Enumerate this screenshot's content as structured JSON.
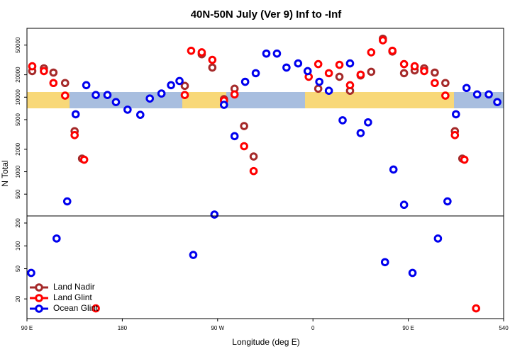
{
  "chart_data": [
    {
      "type": "scatter",
      "title": "40N-50N July (Ver 9)   Inf to -Inf",
      "ylabel": "N Total",
      "log_y": true,
      "xlim": [
        90,
        540
      ],
      "ylim": [
        255,
        84000
      ],
      "yticks": [
        500,
        1000,
        2000,
        5000,
        10000,
        20000,
        50000
      ],
      "series": [
        {
          "color": "#a52a2a",
          "x": [
            95,
            106,
            115,
            126,
            135,
            142,
            239,
            255,
            265,
            276,
            286,
            295,
            304,
            365,
            385,
            395,
            405,
            415,
            426,
            435,
            446,
            456,
            465,
            475,
            485,
            494,
            501
          ],
          "values": [
            22400,
            24400,
            21400,
            15500,
            3500,
            1500,
            14200,
            37700,
            25000,
            9400,
            13000,
            4100,
            1600,
            13000,
            18800,
            12200,
            19600,
            21900,
            61000,
            41000,
            21000,
            22900,
            24400,
            21400,
            15500,
            3500,
            1500
          ]
        },
        {
          "color": "#ff0000",
          "x": [
            95,
            106,
            115,
            126,
            135,
            144,
            239,
            245,
            255,
            265,
            276,
            286,
            295,
            304,
            356,
            365,
            375,
            385,
            395,
            405,
            415,
            426,
            435,
            446,
            456,
            465,
            475,
            485,
            494,
            503
          ],
          "values": [
            26000,
            22400,
            15500,
            10500,
            3100,
            1450,
            10700,
            42000,
            40000,
            31700,
            9000,
            10900,
            2200,
            1020,
            18800,
            27800,
            21000,
            27200,
            14500,
            20100,
            40000,
            58000,
            42000,
            27800,
            26000,
            22400,
            15500,
            10500,
            3100,
            1450
          ]
        },
        {
          "color": "#0000ee",
          "x": [
            128,
            136,
            146,
            155,
            166,
            174,
            185,
            197,
            206,
            217,
            226,
            234,
            267,
            276,
            286,
            296,
            306,
            316,
            326,
            335,
            346,
            355,
            366,
            375,
            388,
            395,
            405,
            412,
            436,
            446,
            487,
            495,
            505,
            515,
            526,
            534
          ],
          "values": [
            400,
            5900,
            14500,
            10700,
            10700,
            8600,
            6800,
            5800,
            9600,
            11200,
            14500,
            16500,
            266,
            7900,
            3000,
            16100,
            21000,
            38500,
            38500,
            25000,
            28400,
            22400,
            16100,
            12200,
            4900,
            28400,
            3300,
            4600,
            1070,
            360,
            400,
            5900,
            13300,
            10900,
            10900,
            8600
          ]
        }
      ]
    },
    {
      "type": "scatter",
      "xlabel": "Longitude (deg E)",
      "log_y": true,
      "legend": "lower left",
      "xlim": [
        90,
        540
      ],
      "xticks": [
        {
          "value": 90,
          "label": "90 E"
        },
        180,
        {
          "value": 270,
          "label": "90 W"
        },
        {
          "value": 360,
          "label": "0"
        },
        {
          "value": 450,
          "label": "90 E"
        },
        540
      ],
      "ylim": [
        11,
        248
      ],
      "yticks": [
        20,
        50,
        100,
        200
      ],
      "series": [
        {
          "name": "Land Nadir",
          "color": "#a52a2a",
          "x": [],
          "values": []
        },
        {
          "name": "Land Glint",
          "color": "#ff0000",
          "x": [
            155,
            514
          ],
          "values": [
            15,
            15
          ]
        },
        {
          "name": "Ocean Glint",
          "color": "#0000ee",
          "x": [
            94,
            118,
            247,
            428,
            454,
            478
          ],
          "values": [
            44,
            125,
            76,
            61,
            44,
            125
          ]
        }
      ]
    }
  ]
}
